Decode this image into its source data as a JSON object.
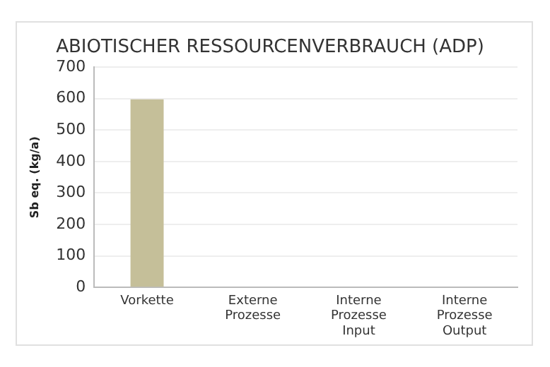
{
  "chart_data": {
    "type": "bar",
    "title": "ABIOTISCHER RESSOURCENVERBRAUCH (ADP)",
    "ylabel": "Sb eq. (kg/a)",
    "categories": [
      "Vorkette",
      "Externe Prozesse",
      "Interne Prozesse Input",
      "Interne Prozesse Output"
    ],
    "values": [
      598,
      0,
      0,
      0
    ],
    "color": "#c5bf99",
    "ylim": [
      0,
      700
    ],
    "yticks": [
      0,
      100,
      200,
      300,
      400,
      500,
      600,
      700
    ],
    "grid": "y",
    "legend": false
  }
}
